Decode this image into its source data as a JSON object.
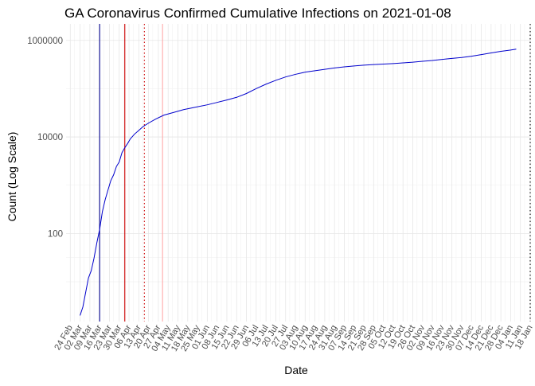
{
  "chart_data": {
    "type": "line",
    "title": "GA Coronavirus Confirmed Cumulative Infections on 2021-01-08",
    "xlabel": "Date",
    "ylabel": "Count (Log Scale)",
    "y_scale": "log10",
    "y_ticks": [
      100,
      10000,
      1000000
    ],
    "y_tick_labels": [
      "100",
      "10000",
      "1000000"
    ],
    "ylim": [
      1.5,
      2200000
    ],
    "xlim": [
      "2020-02-21",
      "2021-01-18"
    ],
    "x_tick_dates": [
      "2020-02-24",
      "2020-03-02",
      "2020-03-09",
      "2020-03-16",
      "2020-03-23",
      "2020-03-30",
      "2020-04-06",
      "2020-04-13",
      "2020-04-20",
      "2020-04-27",
      "2020-05-04",
      "2020-05-11",
      "2020-05-18",
      "2020-05-25",
      "2020-06-01",
      "2020-06-08",
      "2020-06-15",
      "2020-06-22",
      "2020-06-29",
      "2020-07-06",
      "2020-07-13",
      "2020-07-20",
      "2020-07-27",
      "2020-08-03",
      "2020-08-10",
      "2020-08-17",
      "2020-08-24",
      "2020-08-31",
      "2020-09-07",
      "2020-09-14",
      "2020-09-21",
      "2020-09-28",
      "2020-10-05",
      "2020-10-12",
      "2020-10-19",
      "2020-10-26",
      "2020-11-02",
      "2020-11-09",
      "2020-11-16",
      "2020-11-23",
      "2020-11-30",
      "2020-12-07",
      "2020-12-14",
      "2020-12-21",
      "2020-12-28",
      "2021-01-04",
      "2021-01-11",
      "2021-01-18"
    ],
    "x_tick_labels": [
      "24 Feb",
      "02 Mar",
      "09 Mar",
      "16 Mar",
      "23 Mar",
      "30 Mar",
      "06 Apr",
      "13 Apr",
      "20 Apr",
      "27 Apr",
      "04 May",
      "11 May",
      "18 May",
      "25 May",
      "01 Jun",
      "08 Jun",
      "15 Jun",
      "22 Jun",
      "29 Jun",
      "06 Jul",
      "13 Jul",
      "20 Jul",
      "27 Jul",
      "03 Aug",
      "10 Aug",
      "17 Aug",
      "24 Aug",
      "31 Aug",
      "07 Sep",
      "14 Sep",
      "21 Sep",
      "28 Sep",
      "05 Oct",
      "12 Oct",
      "19 Oct",
      "26 Oct",
      "02 Nov",
      "09 Nov",
      "16 Nov",
      "23 Nov",
      "30 Nov",
      "07 Dec",
      "14 Dec",
      "21 Dec",
      "28 Dec",
      "04 Jan",
      "11 Jan",
      "18 Jan"
    ],
    "grid": true,
    "series": [
      {
        "color": "#0000cc",
        "points": [
          [
            "2020-03-02",
            2
          ],
          [
            "2020-03-04",
            3
          ],
          [
            "2020-03-06",
            6
          ],
          [
            "2020-03-08",
            12
          ],
          [
            "2020-03-10",
            17
          ],
          [
            "2020-03-12",
            31
          ],
          [
            "2020-03-14",
            64
          ],
          [
            "2020-03-16",
            121
          ],
          [
            "2020-03-18",
            287
          ],
          [
            "2020-03-20",
            507
          ],
          [
            "2020-03-22",
            800
          ],
          [
            "2020-03-24",
            1247
          ],
          [
            "2020-03-26",
            1643
          ],
          [
            "2020-03-28",
            2446
          ],
          [
            "2020-03-30",
            3032
          ],
          [
            "2020-04-01",
            4748
          ],
          [
            "2020-04-03",
            5967
          ],
          [
            "2020-04-05",
            7314
          ],
          [
            "2020-04-07",
            9156
          ],
          [
            "2020-04-10",
            11483
          ],
          [
            "2020-04-13",
            13621
          ],
          [
            "2020-04-16",
            16368
          ],
          [
            "2020-04-20",
            19399
          ],
          [
            "2020-04-25",
            23401
          ],
          [
            "2020-05-01",
            28331
          ],
          [
            "2020-05-08",
            32181
          ],
          [
            "2020-05-15",
            36772
          ],
          [
            "2020-05-22",
            40405
          ],
          [
            "2020-06-01",
            46331
          ],
          [
            "2020-06-08",
            51898
          ],
          [
            "2020-06-15",
            58414
          ],
          [
            "2020-06-22",
            66193
          ],
          [
            "2020-06-29",
            79417
          ],
          [
            "2020-07-06",
            100470
          ],
          [
            "2020-07-13",
            123963
          ],
          [
            "2020-07-20",
            148988
          ],
          [
            "2020-07-27",
            175052
          ],
          [
            "2020-08-03",
            197948
          ],
          [
            "2020-08-10",
            220025
          ],
          [
            "2020-08-17",
            235180
          ],
          [
            "2020-08-24",
            252031
          ],
          [
            "2020-08-31",
            268973
          ],
          [
            "2020-09-07",
            282630
          ],
          [
            "2020-09-14",
            295432
          ],
          [
            "2020-09-21",
            306581
          ],
          [
            "2020-09-28",
            316209
          ],
          [
            "2020-10-05",
            322722
          ],
          [
            "2020-10-12",
            331003
          ],
          [
            "2020-10-19",
            342193
          ],
          [
            "2020-10-26",
            354076
          ],
          [
            "2020-11-02",
            370254
          ],
          [
            "2020-11-09",
            384474
          ],
          [
            "2020-11-16",
            404081
          ],
          [
            "2020-11-23",
            423520
          ],
          [
            "2020-11-30",
            441985
          ],
          [
            "2020-12-07",
            469836
          ],
          [
            "2020-12-14",
            506634
          ],
          [
            "2020-12-21",
            550536
          ],
          [
            "2020-12-28",
            594016
          ],
          [
            "2021-01-04",
            631800
          ],
          [
            "2021-01-08",
            660000
          ]
        ]
      }
    ],
    "reference_lines": [
      {
        "date": "2020-03-16",
        "color": "#00008b",
        "style": "solid"
      },
      {
        "date": "2020-04-03",
        "color": "#cc0000",
        "style": "solid"
      },
      {
        "date": "2020-04-17",
        "color": "#cc0000",
        "style": "dotted"
      },
      {
        "date": "2020-04-30",
        "color": "#ffaaaa",
        "style": "solid"
      },
      {
        "date": "2021-01-18",
        "color": "#000000",
        "style": "dotted"
      }
    ]
  }
}
